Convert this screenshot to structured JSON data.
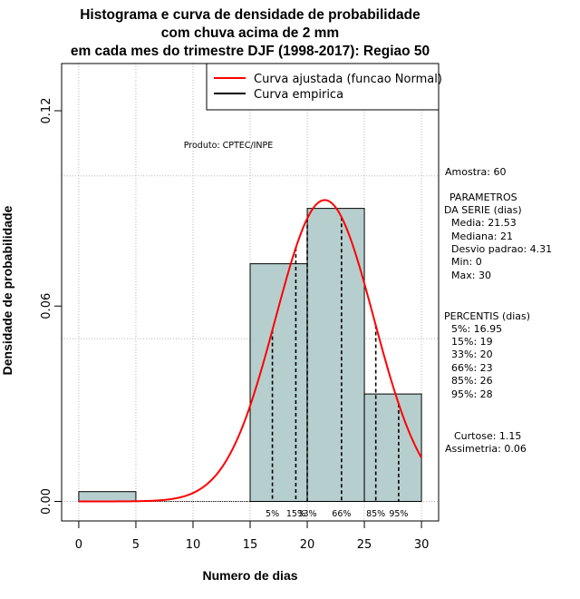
{
  "chart_data": {
    "type": "bar",
    "title_lines": [
      "Histograma e curva de densidade de probabilidade",
      "com chuva acima de 2 mm",
      "em cada mes do trimestre DJF (1998-2017): Regiao 50"
    ],
    "xlabel": "Numero de dias",
    "ylabel": "Densidade de probabilidade",
    "xlim": [
      -1.5,
      31.5
    ],
    "ylim": [
      -0.006,
      0.1345
    ],
    "x_ticks": [
      0,
      5,
      10,
      15,
      20,
      25,
      30
    ],
    "x_tick_labels": [
      "0",
      "5",
      "10",
      "15",
      "20",
      "25",
      "30"
    ],
    "y_ticks": [
      0.0,
      0.06,
      0.12
    ],
    "y_tick_labels": [
      "0.00",
      "0.06",
      "0.12"
    ],
    "grid_x": [
      0,
      5,
      10,
      15,
      20,
      25,
      30
    ],
    "grid_y": [
      0.0,
      0.05,
      0.1
    ],
    "histogram": [
      {
        "x0": 0,
        "x1": 5,
        "density": 0.003
      },
      {
        "x0": 15,
        "x1": 20,
        "density": 0.073
      },
      {
        "x0": 20,
        "x1": 25,
        "density": 0.09
      },
      {
        "x0": 25,
        "x1": 30,
        "density": 0.033
      }
    ],
    "bar_color": "#b6cece",
    "normal_curve": {
      "mean": 21.53,
      "sd": 4.31,
      "x_from": 0,
      "x_to": 30,
      "color": "#ff0000"
    },
    "percentile_lines": [
      {
        "label": "5%",
        "x": 16.95
      },
      {
        "label": "15%",
        "x": 19
      },
      {
        "label": "33%",
        "x": 20
      },
      {
        "label": "66%",
        "x": 23
      },
      {
        "label": "85%",
        "x": 26
      },
      {
        "label": "95%",
        "x": 28
      }
    ],
    "legend": {
      "position": "top-right",
      "entries": [
        {
          "label": "Curva ajustada (funcao Normal)",
          "color": "#ff0000"
        },
        {
          "label": "Curva empirica",
          "color": "#000000"
        }
      ]
    },
    "annotation": "Produto: CPTEC/INPE"
  },
  "side_panel": {
    "sample": "Amostra: 60",
    "params_title_1": "PARAMETROS",
    "params_title_2": "DA SERIE (dias)",
    "params": [
      "Media: 21.53",
      "Mediana: 21",
      "Desvio padrao: 4.31",
      "Min: 0",
      "Max: 30"
    ],
    "percentis_title": "PERCENTIS (dias)",
    "percentis": [
      "5%: 16.95",
      "15%: 19",
      "33%: 20",
      "66%: 23",
      "85%: 26",
      "95%: 28"
    ],
    "kurtosis": "Curtose: 1.15",
    "skewness": "Assimetria: 0.06"
  }
}
